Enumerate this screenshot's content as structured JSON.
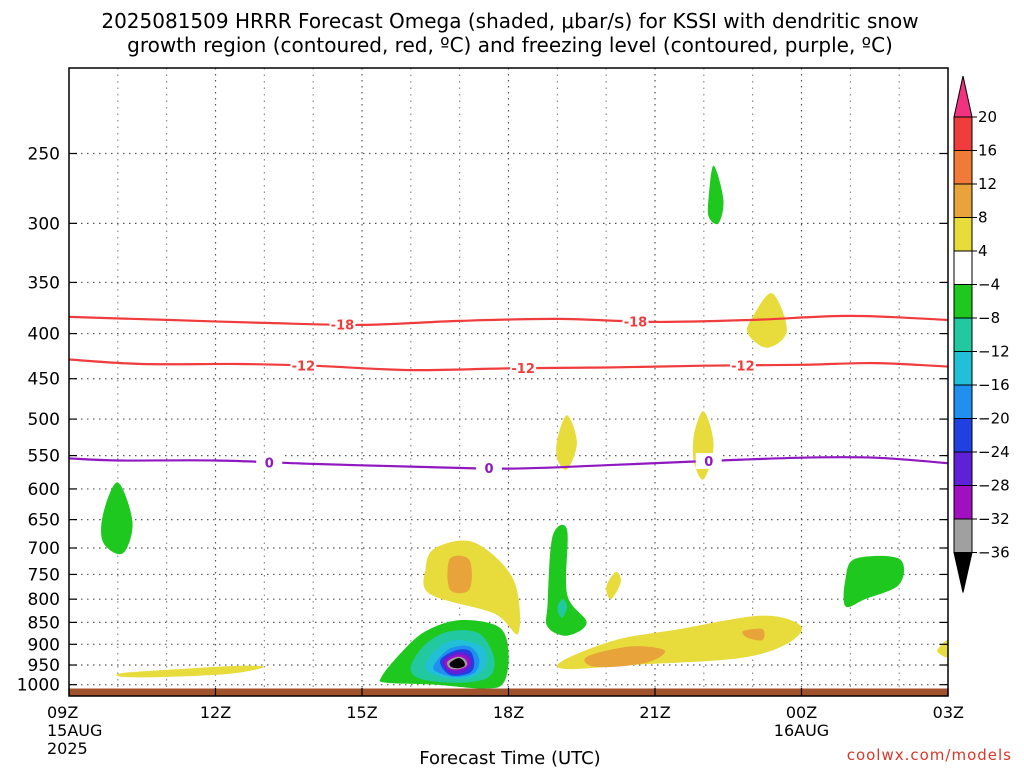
{
  "chart_data": {
    "type": "contour",
    "title_line1": "2025081509 HRRR Forecast Omega (shaded, μbar/s) for KSSI with dendritic snow",
    "title_line2": "growth region (contoured, red, ºC) and freezing level (contoured, purple, ºC)",
    "xlabel": "Forecast Time (UTC)",
    "credit": "coolwx.com/models",
    "x_ticks": [
      {
        "hour": 9,
        "label": "09Z",
        "sub1": "15AUG",
        "sub2": "2025"
      },
      {
        "hour": 12,
        "label": "12Z",
        "sub1": "",
        "sub2": ""
      },
      {
        "hour": 15,
        "label": "15Z",
        "sub1": "",
        "sub2": ""
      },
      {
        "hour": 18,
        "label": "18Z",
        "sub1": "",
        "sub2": ""
      },
      {
        "hour": 21,
        "label": "21Z",
        "sub1": "",
        "sub2": ""
      },
      {
        "hour": 24,
        "label": "00Z",
        "sub1": "16AUG",
        "sub2": ""
      },
      {
        "hour": 27,
        "label": "03Z",
        "sub1": "",
        "sub2": ""
      }
    ],
    "x_range_hours": [
      9,
      27
    ],
    "y_ticks": [
      250,
      300,
      350,
      400,
      450,
      500,
      550,
      600,
      650,
      700,
      750,
      800,
      850,
      900,
      950,
      1000
    ],
    "y_range_hPa": [
      200,
      1030
    ],
    "y_scale": "log",
    "grid": true,
    "colorbar": {
      "labels": [
        "20",
        "16",
        "12",
        "8",
        "4",
        "−4",
        "−8",
        "−12",
        "−16",
        "−20",
        "−24",
        "−28",
        "−32",
        "−36"
      ],
      "colors": [
        "#f03280",
        "#f03c3c",
        "#f07a38",
        "#e8a43a",
        "#e8dc3c",
        "#ffffff",
        "#1ec81e",
        "#22c8a0",
        "#22c0d8",
        "#2090f0",
        "#2040e0",
        "#6020d8",
        "#a010c0",
        "#a0a0a0",
        "#000000"
      ]
    },
    "contour_lines": [
      {
        "kind": "temperature",
        "color": "#f03c3c",
        "labels": [
          "-18",
          "-18"
        ],
        "points": [
          [
            9,
            383
          ],
          [
            11,
            386
          ],
          [
            13,
            389
          ],
          [
            15,
            391
          ],
          [
            17,
            387
          ],
          [
            19,
            385
          ],
          [
            21,
            388
          ],
          [
            23,
            386
          ],
          [
            25,
            382
          ],
          [
            27,
            386
          ]
        ]
      },
      {
        "kind": "temperature",
        "color": "#f03c3c",
        "labels": [
          "-12",
          "-12",
          "-12"
        ],
        "points": [
          [
            9,
            428
          ],
          [
            10.5,
            433
          ],
          [
            12.5,
            433
          ],
          [
            14,
            435
          ],
          [
            16,
            440
          ],
          [
            18,
            438
          ],
          [
            20,
            437
          ],
          [
            22,
            435
          ],
          [
            24,
            434
          ],
          [
            25.5,
            432
          ],
          [
            27,
            436
          ]
        ]
      },
      {
        "kind": "freezing-level",
        "color": "#9018c0",
        "labels": [
          "0",
          "0",
          "0"
        ],
        "points": [
          [
            9,
            554
          ],
          [
            10,
            557
          ],
          [
            12,
            557
          ],
          [
            14,
            562
          ],
          [
            16,
            566
          ],
          [
            18,
            569
          ],
          [
            20,
            564
          ],
          [
            22,
            558
          ],
          [
            24,
            553
          ],
          [
            25.5,
            553
          ],
          [
            27,
            561
          ]
        ]
      }
    ],
    "shaded_regions": [
      {
        "band": "4 to 8",
        "points": [
          [
            16.5,
            700
          ],
          [
            17.3,
            690
          ],
          [
            18.1,
            760
          ],
          [
            18.2,
            875
          ],
          [
            17.7,
            830
          ],
          [
            16.4,
            790
          ],
          [
            16.3,
            740
          ]
        ]
      },
      {
        "band": "8 to 12",
        "points": [
          [
            16.8,
            720
          ],
          [
            17.2,
            722
          ],
          [
            17.2,
            780
          ],
          [
            16.8,
            780
          ]
        ]
      },
      {
        "band": "4 to 8",
        "points": [
          [
            19.1,
            940
          ],
          [
            20.2,
            890
          ],
          [
            21.5,
            865
          ],
          [
            23.2,
            835
          ],
          [
            24,
            860
          ],
          [
            23.6,
            905
          ],
          [
            22.6,
            935
          ],
          [
            20.5,
            950
          ],
          [
            19.2,
            960
          ]
        ]
      },
      {
        "band": "8 to 12",
        "points": [
          [
            19.6,
            930
          ],
          [
            20.5,
            905
          ],
          [
            21.2,
            915
          ],
          [
            20.8,
            945
          ],
          [
            19.8,
            955
          ]
        ]
      },
      {
        "band": "8 to 12",
        "points": [
          [
            22.8,
            870
          ],
          [
            23.2,
            865
          ],
          [
            23.2,
            890
          ],
          [
            22.9,
            885
          ]
        ]
      },
      {
        "band": "4 to 8",
        "points": [
          [
            10.1,
            970
          ],
          [
            11.3,
            960
          ],
          [
            12.5,
            952
          ],
          [
            13.0,
            955
          ],
          [
            12.3,
            972
          ],
          [
            11.0,
            980
          ],
          [
            10.1,
            980
          ]
        ]
      },
      {
        "band": "4 to 8",
        "points": [
          [
            23.0,
            383
          ],
          [
            23.4,
            360
          ],
          [
            23.7,
            397
          ],
          [
            23.3,
            415
          ],
          [
            22.9,
            400
          ]
        ]
      },
      {
        "band": "4 to 8",
        "points": [
          [
            19.0,
            527
          ],
          [
            19.2,
            495
          ],
          [
            19.4,
            532
          ],
          [
            19.2,
            570
          ],
          [
            19.0,
            555
          ]
        ]
      },
      {
        "band": "4 to 8",
        "points": [
          [
            21.8,
            520
          ],
          [
            22.0,
            490
          ],
          [
            22.2,
            535
          ],
          [
            22.0,
            585
          ],
          [
            21.8,
            560
          ]
        ]
      },
      {
        "band": "4 to 8",
        "points": [
          [
            20.0,
            775
          ],
          [
            20.2,
            745
          ],
          [
            20.3,
            765
          ],
          [
            20.1,
            800
          ]
        ]
      },
      {
        "band": "4 to 8",
        "points": [
          [
            26.8,
            910
          ],
          [
            27.0,
            890
          ],
          [
            27.0,
            930
          ],
          [
            26.8,
            920
          ]
        ]
      },
      {
        "band": "-4 to -8",
        "points": [
          [
            9.7,
            640
          ],
          [
            10.0,
            590
          ],
          [
            10.3,
            655
          ],
          [
            10.1,
            710
          ],
          [
            9.7,
            690
          ]
        ]
      },
      {
        "band": "-4 to -8",
        "points": [
          [
            22.1,
            280
          ],
          [
            22.2,
            258
          ],
          [
            22.4,
            282
          ],
          [
            22.3,
            300
          ],
          [
            22.1,
            295
          ]
        ]
      },
      {
        "band": "-4 to -8",
        "points": [
          [
            18.8,
            810
          ],
          [
            18.9,
            680
          ],
          [
            19.2,
            668
          ],
          [
            19.2,
            790
          ],
          [
            19.6,
            850
          ],
          [
            19.2,
            880
          ],
          [
            18.8,
            860
          ]
        ]
      },
      {
        "band": "-8 to -12",
        "points": [
          [
            19.0,
            820
          ],
          [
            19.1,
            800
          ],
          [
            19.2,
            815
          ],
          [
            19.1,
            840
          ]
        ]
      },
      {
        "band": "-4 to -8",
        "points": [
          [
            24.9,
            760
          ],
          [
            25.1,
            720
          ],
          [
            26.0,
            720
          ],
          [
            26.0,
            770
          ],
          [
            25.3,
            800
          ],
          [
            24.9,
            815
          ]
        ]
      },
      {
        "band": "-4 to -8",
        "points": [
          [
            15.4,
            980
          ],
          [
            15.8,
            920
          ],
          [
            16.3,
            870
          ],
          [
            17.0,
            845
          ],
          [
            17.8,
            860
          ],
          [
            18.0,
            920
          ],
          [
            17.9,
            995
          ],
          [
            17.5,
            1010
          ],
          [
            16.5,
            1000
          ],
          [
            15.5,
            995
          ]
        ]
      },
      {
        "band": "-8 to -12",
        "points": [
          [
            16.0,
            955
          ],
          [
            16.3,
            900
          ],
          [
            16.8,
            870
          ],
          [
            17.4,
            875
          ],
          [
            17.7,
            930
          ],
          [
            17.6,
            980
          ],
          [
            17.0,
            995
          ],
          [
            16.2,
            985
          ]
        ]
      },
      {
        "band": "-12 to -16",
        "points": [
          [
            16.3,
            950
          ],
          [
            16.6,
            905
          ],
          [
            17.0,
            890
          ],
          [
            17.5,
            910
          ],
          [
            17.5,
            960
          ],
          [
            17.1,
            985
          ],
          [
            16.5,
            975
          ]
        ]
      },
      {
        "band": "-16 to -20",
        "points": [
          [
            16.5,
            945
          ],
          [
            16.8,
            910
          ],
          [
            17.2,
            905
          ],
          [
            17.4,
            935
          ],
          [
            17.3,
            970
          ],
          [
            16.9,
            980
          ],
          [
            16.5,
            965
          ]
        ]
      },
      {
        "band": "-20 to -24",
        "points": [
          [
            16.6,
            940
          ],
          [
            16.9,
            915
          ],
          [
            17.2,
            915
          ],
          [
            17.3,
            945
          ],
          [
            17.2,
            970
          ],
          [
            16.8,
            975
          ]
        ]
      },
      {
        "band": "-24 to -28",
        "points": [
          [
            16.65,
            940
          ],
          [
            16.9,
            920
          ],
          [
            17.15,
            922
          ],
          [
            17.25,
            945
          ],
          [
            17.1,
            968
          ],
          [
            16.8,
            970
          ]
        ]
      },
      {
        "band": "-28 to -32",
        "points": [
          [
            16.7,
            942
          ],
          [
            16.95,
            925
          ],
          [
            17.15,
            930
          ],
          [
            17.2,
            948
          ],
          [
            17.05,
            962
          ],
          [
            16.8,
            962
          ]
        ]
      },
      {
        "band": "-32 to -36",
        "points": [
          [
            16.75,
            942
          ],
          [
            16.95,
            930
          ],
          [
            17.1,
            935
          ],
          [
            17.15,
            950
          ],
          [
            17.0,
            960
          ],
          [
            16.8,
            958
          ]
        ]
      },
      {
        "band": "< -36",
        "points": [
          [
            16.8,
            945
          ],
          [
            16.97,
            933
          ],
          [
            17.08,
            940
          ],
          [
            17.1,
            952
          ],
          [
            16.98,
            958
          ],
          [
            16.83,
            955
          ]
        ]
      }
    ],
    "ground": {
      "label": "",
      "color": "#a0522d",
      "pressure_top": 1010
    }
  }
}
